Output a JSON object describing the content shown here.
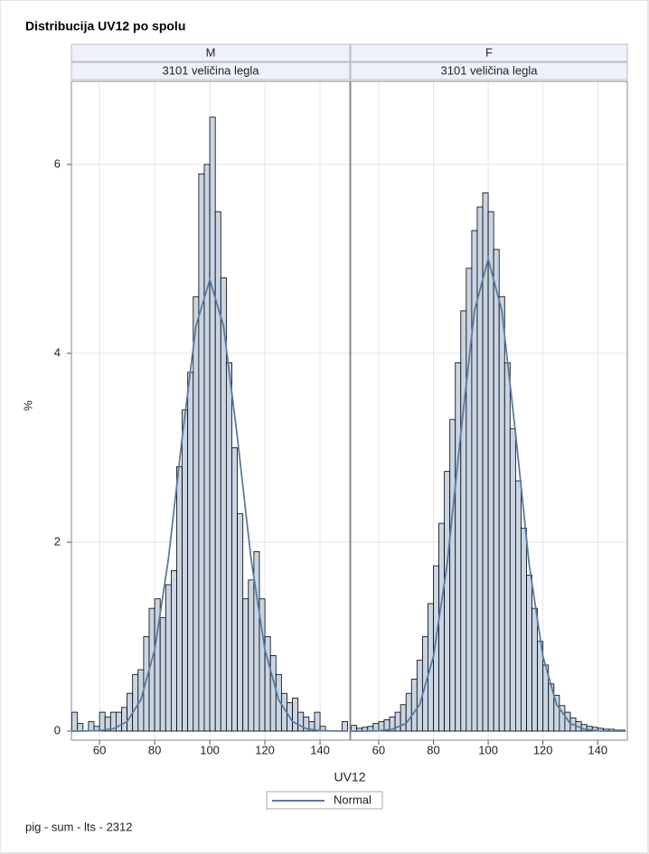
{
  "title": "Distribucija UV12 po spolu",
  "y_label": "%",
  "x_label": "UV12",
  "footnote": "pig - sum - lts - 2312",
  "chart_data": [
    {
      "type": "histogram",
      "panel": "M",
      "subheader": "3101 veličina legla",
      "color": "#c9d5e3",
      "bins": [
        50,
        52,
        54,
        56,
        58,
        60,
        62,
        64,
        66,
        68,
        70,
        72,
        74,
        76,
        78,
        80,
        82,
        84,
        86,
        88,
        90,
        92,
        94,
        96,
        98,
        100,
        102,
        104,
        106,
        108,
        110,
        112,
        114,
        116,
        118,
        120,
        122,
        124,
        126,
        128,
        130,
        132,
        134,
        136,
        138,
        140,
        142,
        144,
        146,
        148,
        150
      ],
      "values": [
        0.2,
        0.08,
        0,
        0.1,
        0.05,
        0.2,
        0.15,
        0.2,
        0.2,
        0.25,
        0.4,
        0.6,
        0.65,
        1.0,
        1.3,
        1.4,
        1.2,
        1.55,
        1.7,
        2.8,
        3.4,
        3.8,
        4.6,
        5.9,
        6.0,
        6.5,
        5.5,
        4.8,
        3.9,
        3.0,
        2.3,
        1.4,
        1.6,
        1.9,
        1.4,
        1.0,
        0.8,
        0.6,
        0.4,
        0.3,
        0.35,
        0.2,
        0.15,
        0.1,
        0.2,
        0.05,
        0,
        0,
        0,
        0.1
      ],
      "series": [
        {
          "name": "Normal",
          "color": "#5b7ba0",
          "x": [
            50,
            55,
            60,
            65,
            70,
            75,
            80,
            85,
            90,
            95,
            100,
            105,
            110,
            115,
            120,
            125,
            130,
            135,
            140,
            145,
            150
          ],
          "values": [
            0,
            0.001,
            0.005,
            0.025,
            0.1,
            0.33,
            0.86,
            1.82,
            3.11,
            4.29,
            4.78,
            4.29,
            3.11,
            1.82,
            0.86,
            0.33,
            0.1,
            0.025,
            0.005,
            0.001,
            0
          ]
        }
      ],
      "xlim": [
        49.8,
        150.8
      ],
      "xticks": [
        60,
        80,
        100,
        120,
        140
      ],
      "ylim": [
        0,
        6.88
      ],
      "yticks": [
        0,
        2,
        4,
        6
      ],
      "grid": true
    },
    {
      "type": "histogram",
      "panel": "F",
      "subheader": "3101 veličina legla",
      "color": "#c9d5e3",
      "bins": [
        50,
        52,
        54,
        56,
        58,
        60,
        62,
        64,
        66,
        68,
        70,
        72,
        74,
        76,
        78,
        80,
        82,
        84,
        86,
        88,
        90,
        92,
        94,
        96,
        98,
        100,
        102,
        104,
        106,
        108,
        110,
        112,
        114,
        116,
        118,
        120,
        122,
        124,
        126,
        128,
        130,
        132,
        134,
        136,
        138,
        140,
        142,
        144,
        146,
        148,
        150
      ],
      "values": [
        0.06,
        0.03,
        0.04,
        0.05,
        0.08,
        0.1,
        0.12,
        0.15,
        0.2,
        0.28,
        0.4,
        0.55,
        0.75,
        1.0,
        1.35,
        1.75,
        2.2,
        2.75,
        3.3,
        3.9,
        4.45,
        4.9,
        5.3,
        5.55,
        5.7,
        5.5,
        5.1,
        4.6,
        3.9,
        3.2,
        2.65,
        2.15,
        1.65,
        1.3,
        0.95,
        0.7,
        0.5,
        0.38,
        0.27,
        0.2,
        0.14,
        0.1,
        0.07,
        0.05,
        0.04,
        0.03,
        0.02,
        0.02,
        0.01,
        0.01
      ],
      "series": [
        {
          "name": "Normal",
          "color": "#5b7ba0",
          "x": [
            50,
            55,
            60,
            65,
            70,
            75,
            80,
            85,
            90,
            95,
            100,
            105,
            110,
            115,
            120,
            125,
            130,
            135,
            140,
            145,
            150
          ],
          "values": [
            0,
            0,
            0.003,
            0.02,
            0.08,
            0.28,
            0.79,
            1.76,
            3.15,
            4.45,
            5.0,
            4.45,
            3.15,
            1.76,
            0.79,
            0.28,
            0.08,
            0.02,
            0.003,
            0,
            0
          ]
        }
      ],
      "xlim": [
        49.8,
        150.8
      ],
      "xticks": [
        60,
        80,
        100,
        120,
        140
      ],
      "ylim": [
        0,
        6.88
      ],
      "yticks": [
        0,
        2,
        4,
        6
      ],
      "grid": true
    }
  ]
}
